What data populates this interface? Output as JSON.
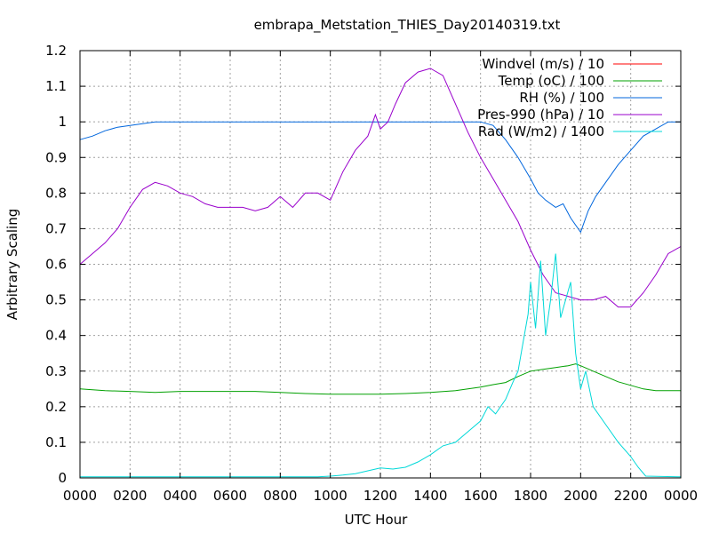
{
  "chart_data": {
    "type": "line",
    "title": "embrapa_Metstation_THIES_Day20140319.txt",
    "xlabel": "UTC Hour",
    "ylabel": "Arbitrary Scaling",
    "xlim": [
      0,
      24
    ],
    "ylim": [
      0,
      1.2
    ],
    "grid": true,
    "legend_position": "top-right",
    "x_ticks": [
      {
        "value": 0,
        "label": "0000"
      },
      {
        "value": 2,
        "label": "0200"
      },
      {
        "value": 4,
        "label": "0400"
      },
      {
        "value": 6,
        "label": "0600"
      },
      {
        "value": 8,
        "label": "0800"
      },
      {
        "value": 10,
        "label": "1000"
      },
      {
        "value": 12,
        "label": "1200"
      },
      {
        "value": 14,
        "label": "1400"
      },
      {
        "value": 16,
        "label": "1600"
      },
      {
        "value": 18,
        "label": "1800"
      },
      {
        "value": 20,
        "label": "2000"
      },
      {
        "value": 22,
        "label": "2200"
      },
      {
        "value": 24,
        "label": "0000"
      }
    ],
    "y_ticks": [
      {
        "value": 0,
        "label": "0"
      },
      {
        "value": 0.1,
        "label": "0.1"
      },
      {
        "value": 0.2,
        "label": "0.2"
      },
      {
        "value": 0.3,
        "label": "0.3"
      },
      {
        "value": 0.4,
        "label": "0.4"
      },
      {
        "value": 0.5,
        "label": "0.5"
      },
      {
        "value": 0.6,
        "label": "0.6"
      },
      {
        "value": 0.7,
        "label": "0.7"
      },
      {
        "value": 0.8,
        "label": "0.8"
      },
      {
        "value": 0.9,
        "label": "0.9"
      },
      {
        "value": 1.0,
        "label": "1"
      },
      {
        "value": 1.1,
        "label": "1.1"
      },
      {
        "value": 1.2,
        "label": "1.2"
      }
    ],
    "series": [
      {
        "name": "Windvel (m/s) / 10",
        "color": "#ff0000",
        "x": [],
        "y": []
      },
      {
        "name": "Temp (oC) / 100",
        "color": "#00a000",
        "x": [
          0,
          1,
          2,
          3,
          4,
          5,
          6,
          7,
          8,
          9,
          10,
          11,
          12,
          13,
          14,
          15,
          16,
          16.5,
          17,
          17.5,
          18,
          18.5,
          19,
          19.5,
          19.8,
          20,
          20.5,
          21,
          21.5,
          22,
          22.5,
          23,
          24
        ],
        "y": [
          0.25,
          0.245,
          0.243,
          0.24,
          0.243,
          0.243,
          0.243,
          0.243,
          0.24,
          0.237,
          0.235,
          0.235,
          0.235,
          0.237,
          0.24,
          0.245,
          0.255,
          0.262,
          0.268,
          0.285,
          0.3,
          0.305,
          0.31,
          0.315,
          0.32,
          0.315,
          0.3,
          0.285,
          0.27,
          0.26,
          0.25,
          0.245,
          0.245
        ]
      },
      {
        "name": "RH (%) / 100",
        "color": "#0066dd",
        "x": [
          0,
          0.5,
          1,
          1.5,
          2,
          2.5,
          3,
          16,
          16.5,
          17,
          17.5,
          18,
          18.3,
          18.6,
          19,
          19.3,
          19.6,
          19.9,
          20,
          20.3,
          20.6,
          21,
          21.5,
          22,
          22.5,
          23,
          23.5,
          24
        ],
        "y": [
          0.95,
          0.96,
          0.975,
          0.985,
          0.99,
          0.995,
          1.0,
          1.0,
          0.99,
          0.95,
          0.9,
          0.84,
          0.8,
          0.78,
          0.76,
          0.77,
          0.73,
          0.7,
          0.69,
          0.75,
          0.79,
          0.83,
          0.88,
          0.92,
          0.96,
          0.98,
          1.0,
          1.0
        ]
      },
      {
        "name": "Pres-990 (hPa) / 10",
        "color": "#9900cc",
        "x": [
          0,
          0.5,
          1,
          1.5,
          2,
          2.5,
          3,
          3.5,
          4,
          4.5,
          5,
          5.5,
          6,
          6.5,
          7,
          7.5,
          8,
          8.5,
          9,
          9.5,
          10,
          10.5,
          11,
          11.5,
          11.8,
          12,
          12.3,
          12.6,
          13,
          13.5,
          14,
          14.5,
          15,
          15.5,
          16,
          16.5,
          17,
          17.5,
          18,
          18.5,
          19,
          19.5,
          20,
          20.5,
          21,
          21.5,
          22,
          22.5,
          23,
          23.5,
          24
        ],
        "y": [
          0.6,
          0.63,
          0.66,
          0.7,
          0.76,
          0.81,
          0.83,
          0.82,
          0.8,
          0.79,
          0.77,
          0.76,
          0.76,
          0.76,
          0.75,
          0.76,
          0.79,
          0.76,
          0.8,
          0.8,
          0.78,
          0.86,
          0.92,
          0.96,
          1.02,
          0.98,
          1.0,
          1.05,
          1.11,
          1.14,
          1.15,
          1.13,
          1.05,
          0.97,
          0.9,
          0.84,
          0.78,
          0.72,
          0.64,
          0.57,
          0.52,
          0.51,
          0.5,
          0.5,
          0.51,
          0.48,
          0.48,
          0.52,
          0.57,
          0.63,
          0.65
        ]
      },
      {
        "name": "Rad (W/m2) / 1400",
        "color": "#00d8d8",
        "x": [
          0,
          9.5,
          10,
          10.5,
          11,
          11.5,
          12,
          12.5,
          13,
          13.5,
          14,
          14.5,
          15,
          15.5,
          16,
          16.3,
          16.6,
          17,
          17.3,
          17.5,
          17.7,
          17.9,
          18,
          18.2,
          18.4,
          18.6,
          18.8,
          19,
          19.2,
          19.4,
          19.6,
          19.8,
          20,
          20.2,
          20.5,
          21,
          21.5,
          22,
          22.3,
          22.6,
          24
        ],
        "y": [
          0.003,
          0.003,
          0.005,
          0.008,
          0.012,
          0.02,
          0.028,
          0.025,
          0.03,
          0.045,
          0.065,
          0.09,
          0.1,
          0.13,
          0.16,
          0.2,
          0.18,
          0.22,
          0.27,
          0.3,
          0.38,
          0.46,
          0.55,
          0.42,
          0.61,
          0.4,
          0.5,
          0.63,
          0.45,
          0.5,
          0.55,
          0.35,
          0.25,
          0.3,
          0.2,
          0.15,
          0.1,
          0.06,
          0.03,
          0.005,
          0.003
        ]
      }
    ]
  }
}
